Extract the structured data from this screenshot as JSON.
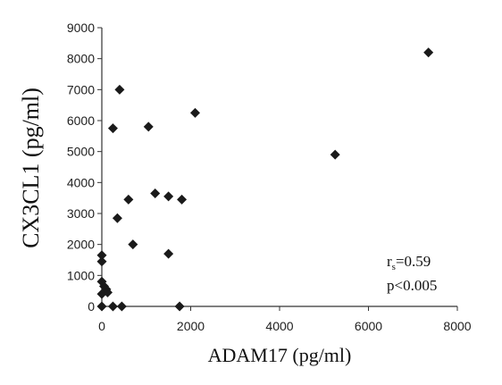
{
  "chart_data": {
    "type": "scatter",
    "title": "",
    "xlabel": "ADAM17  (pg/ml)",
    "ylabel": "CX3CL1  (pg/ml)",
    "xlim": [
      0,
      8000
    ],
    "ylim": [
      0,
      9000
    ],
    "x_ticks": [
      "0",
      "2000",
      "4000",
      "6000",
      "8000"
    ],
    "y_ticks": [
      "0",
      "1000",
      "2000",
      "3000",
      "4000",
      "5000",
      "6000",
      "7000",
      "8000",
      "9000"
    ],
    "grid": false,
    "legend": "none",
    "marker": "diamond",
    "marker_color": "#1a1a1a",
    "annotation": {
      "r_symbol": "r",
      "r_subscript": "s",
      "r_value": "=0.59",
      "p_text": "p<0.005"
    },
    "points": [
      {
        "x": 0,
        "y": 1650
      },
      {
        "x": 0,
        "y": 1450
      },
      {
        "x": 0,
        "y": 800
      },
      {
        "x": 50,
        "y": 650
      },
      {
        "x": 100,
        "y": 550
      },
      {
        "x": 130,
        "y": 450
      },
      {
        "x": 0,
        "y": 400
      },
      {
        "x": 0,
        "y": 0
      },
      {
        "x": 250,
        "y": 0
      },
      {
        "x": 450,
        "y": 0
      },
      {
        "x": 250,
        "y": 5750
      },
      {
        "x": 400,
        "y": 7000
      },
      {
        "x": 350,
        "y": 2850
      },
      {
        "x": 600,
        "y": 3450
      },
      {
        "x": 700,
        "y": 2000
      },
      {
        "x": 1050,
        "y": 5800
      },
      {
        "x": 1200,
        "y": 3650
      },
      {
        "x": 1500,
        "y": 3550
      },
      {
        "x": 1800,
        "y": 3450
      },
      {
        "x": 1500,
        "y": 1700
      },
      {
        "x": 1750,
        "y": 0
      },
      {
        "x": 2100,
        "y": 6250
      },
      {
        "x": 5250,
        "y": 4900
      },
      {
        "x": 7350,
        "y": 8200
      }
    ]
  }
}
